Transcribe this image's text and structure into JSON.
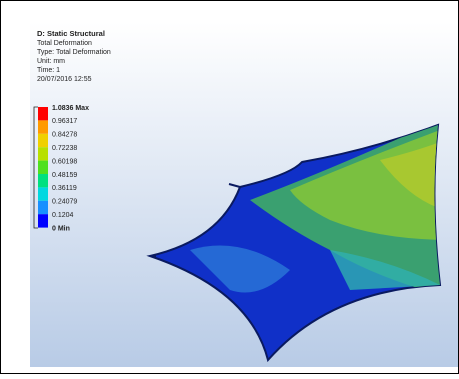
{
  "header": {
    "title": "D: Static Structural",
    "lines": [
      "Total Deformation",
      "Type: Total Deformation",
      "Unit: mm",
      "Time: 1",
      "20/07/2016 12:55"
    ]
  },
  "legend": {
    "labels": [
      "1.0836 Max",
      "0.96317",
      "0.84278",
      "0.72238",
      "0.60198",
      "0.48159",
      "0.36119",
      "0.24079",
      "0.1204",
      "0 Min"
    ]
  }
}
